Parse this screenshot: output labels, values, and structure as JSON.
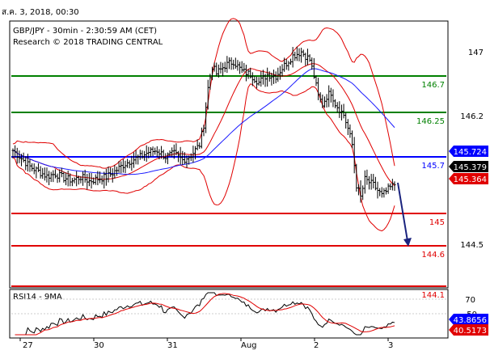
{
  "datetime_label": "ส.ค. 3, 2018, 00:30",
  "chart_data": [
    {
      "type": "candlestick",
      "title": "GBP/JPY - 30min - 2:30:59 AM (CET)",
      "subtitle": "Research © 2018 TRADING CENTRAL",
      "ylim": [
        144.05,
        147.25
      ],
      "y_ticks": [
        147.0,
        146.2,
        144.5
      ],
      "x_tick_labels": [
        "27",
        "30",
        "31",
        "Aug",
        "2",
        "3"
      ],
      "levels": [
        {
          "label": "146.7",
          "value": 146.7,
          "color": "#008000"
        },
        {
          "label": "146.25",
          "value": 146.25,
          "color": "#008000"
        },
        {
          "label": "145.7",
          "value": 145.7,
          "color": "#0000ff"
        },
        {
          "label": "145",
          "value": 145.0,
          "color": "#e00000"
        },
        {
          "label": "144.6",
          "value": 144.6,
          "color": "#e00000"
        },
        {
          "label": "144.1",
          "value": 144.1,
          "color": "#e00000"
        }
      ],
      "price_badges": [
        {
          "label": "145.724",
          "value": 145.724,
          "color": "#0000ff"
        },
        {
          "label": "145.379",
          "value": 145.379,
          "color": "#000000"
        },
        {
          "label": "145.364",
          "value": 145.364,
          "color": "#e00000"
        }
      ],
      "price_path": [
        [
          0,
          145.78
        ],
        [
          4,
          145.68
        ],
        [
          8,
          145.58
        ],
        [
          12,
          145.52
        ],
        [
          16,
          145.46
        ],
        [
          20,
          145.49
        ],
        [
          24,
          145.44
        ],
        [
          28,
          145.41
        ],
        [
          32,
          145.45
        ],
        [
          36,
          145.4
        ],
        [
          40,
          145.43
        ],
        [
          44,
          145.45
        ],
        [
          48,
          145.52
        ],
        [
          52,
          145.6
        ],
        [
          56,
          145.66
        ],
        [
          60,
          145.7
        ],
        [
          64,
          145.76
        ],
        [
          68,
          145.78
        ],
        [
          72,
          145.7
        ],
        [
          76,
          145.74
        ],
        [
          80,
          145.66
        ],
        [
          84,
          145.72
        ],
        [
          88,
          145.85
        ],
        [
          90,
          146.1
        ],
        [
          92,
          146.55
        ],
        [
          94,
          146.82
        ],
        [
          96,
          146.73
        ],
        [
          100,
          146.83
        ],
        [
          104,
          146.88
        ],
        [
          108,
          146.76
        ],
        [
          112,
          146.72
        ],
        [
          116,
          146.62
        ],
        [
          120,
          146.72
        ],
        [
          124,
          146.7
        ],
        [
          128,
          146.83
        ],
        [
          132,
          146.95
        ],
        [
          136,
          147.0
        ],
        [
          140,
          146.9
        ],
        [
          142,
          146.7
        ],
        [
          144,
          146.45
        ],
        [
          146,
          146.35
        ],
        [
          148,
          146.45
        ],
        [
          150,
          146.5
        ],
        [
          152,
          146.36
        ],
        [
          156,
          146.22
        ],
        [
          158,
          146.05
        ],
        [
          160,
          145.85
        ],
        [
          162,
          145.35
        ],
        [
          164,
          145.2
        ],
        [
          166,
          145.42
        ],
        [
          170,
          145.35
        ],
        [
          174,
          145.22
        ],
        [
          178,
          145.32
        ],
        [
          180,
          145.36
        ]
      ],
      "projection": {
        "from_value": 145.38,
        "to_value": 144.6
      },
      "ma_periods": [
        20,
        50
      ],
      "bollinger": {
        "period": 20,
        "stdev": 2
      }
    },
    {
      "type": "line",
      "title": "RSI14 - 9MA",
      "ylim": [
        20,
        80
      ],
      "y_ticks": [
        70,
        50
      ],
      "series": [
        {
          "name": "RSI14",
          "color": "#000000"
        },
        {
          "name": "9MA",
          "color": "#e00000"
        }
      ],
      "badges": [
        {
          "label": "43.8656",
          "value": 43.8656,
          "color": "#0000ff"
        },
        {
          "label": "40.5173",
          "value": 40.5173,
          "color": "#e00000"
        }
      ]
    }
  ]
}
